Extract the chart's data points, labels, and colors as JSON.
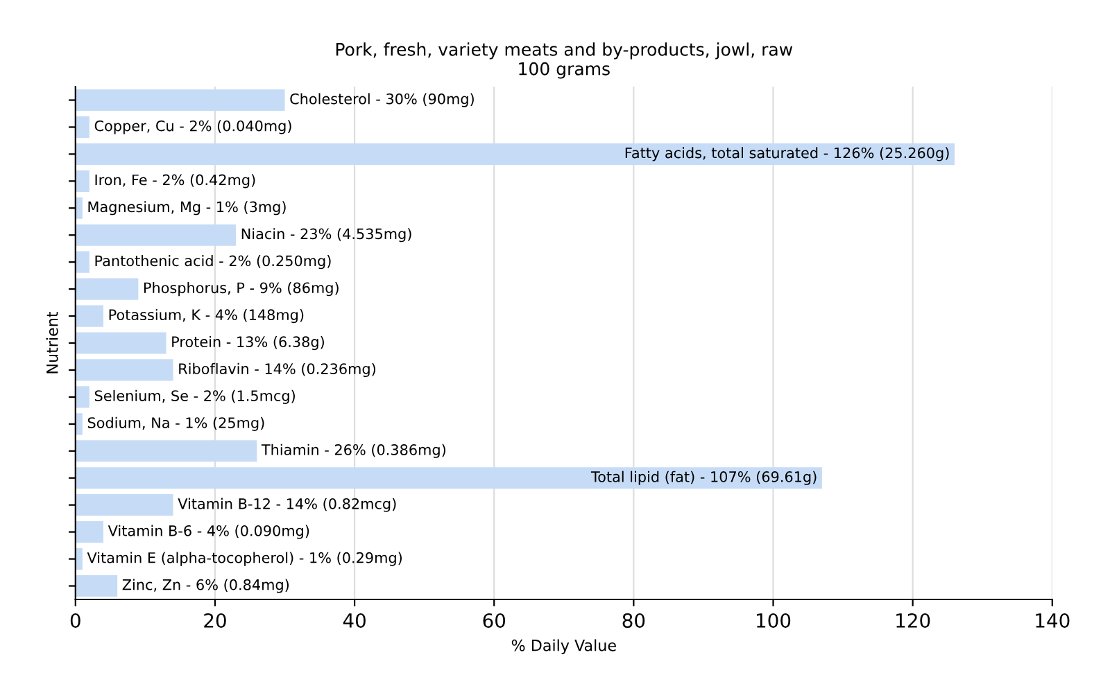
{
  "chart_data": {
    "type": "bar",
    "orientation": "horizontal",
    "title": "Pork, fresh, variety meats and by-products, jowl, raw",
    "subtitle": "100 grams",
    "xlabel": "% Daily Value",
    "ylabel": "Nutrient",
    "categories": [
      "Cholesterol - 30% (90mg)",
      "Copper, Cu - 2% (0.040mg)",
      "Fatty acids, total saturated - 126% (25.260g)",
      "Iron, Fe - 2% (0.42mg)",
      "Magnesium, Mg - 1% (3mg)",
      "Niacin - 23% (4.535mg)",
      "Pantothenic acid - 2% (0.250mg)",
      "Phosphorus, P - 9% (86mg)",
      "Potassium, K - 4% (148mg)",
      "Protein - 13% (6.38g)",
      "Riboflavin - 14% (0.236mg)",
      "Selenium, Se - 2% (1.5mcg)",
      "Sodium, Na - 1% (25mg)",
      "Thiamin - 26% (0.386mg)",
      "Total lipid (fat) - 107% (69.61g)",
      "Vitamin B-12 - 14% (0.82mcg)",
      "Vitamin B-6 - 4% (0.090mg)",
      "Vitamin E (alpha-tocopherol) - 1% (0.29mg)",
      "Zinc, Zn - 6% (0.84mg)"
    ],
    "values": [
      30,
      2,
      126,
      2,
      1,
      23,
      2,
      9,
      4,
      13,
      14,
      2,
      1,
      26,
      107,
      14,
      4,
      1,
      6
    ],
    "color": "#c6dcf6",
    "xlim": [
      0,
      140
    ],
    "xticks": [
      0,
      20,
      40,
      60,
      80,
      100,
      120,
      140
    ],
    "grid": "x",
    "tick_labels": "x"
  }
}
